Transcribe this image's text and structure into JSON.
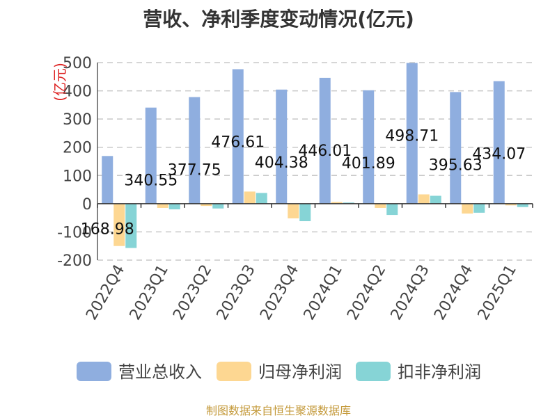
{
  "colors": {
    "revenue": "#8faedf",
    "net_profit": "#fdd792",
    "deducted_profit": "#86d4d6",
    "ylabel": "#dd2222",
    "source": "#c49a3b",
    "grid": "#c8c8c8",
    "axis": "#333333"
  },
  "source_note": "制图数据来自恒生聚源数据库",
  "chart_data": {
    "type": "bar",
    "title": "营收、净利季度变动情况(亿元)",
    "ylabel": "(亿元)",
    "xlabel": "",
    "ylim": [
      -200,
      500
    ],
    "yticks": [
      500,
      400,
      300,
      200,
      100,
      0,
      -100,
      -200
    ],
    "grid": true,
    "legend_position": "bottom",
    "categories": [
      "2022Q4",
      "2023Q1",
      "2023Q2",
      "2023Q3",
      "2023Q4",
      "2024Q1",
      "2024Q2",
      "2024Q3",
      "2024Q4",
      "2025Q1"
    ],
    "series": [
      {
        "name": "营业总收入",
        "color_key": "revenue",
        "values": [
          168.98,
          340.55,
          377.75,
          476.61,
          404.38,
          446.01,
          401.89,
          498.71,
          395.63,
          434.07
        ],
        "labels": [
          "168.98",
          "340.55",
          "377.75",
          "476.61",
          "404.38",
          "446.01",
          "401.89",
          "498.71",
          "395.63",
          "434.07"
        ]
      },
      {
        "name": "归母净利润",
        "color_key": "net_profit",
        "values": [
          -150,
          -15,
          -8,
          43,
          -52,
          6,
          -15,
          33,
          -35,
          -6
        ]
      },
      {
        "name": "扣非净利润",
        "color_key": "deducted_profit",
        "values": [
          -157,
          -20,
          -17,
          38,
          -62,
          4,
          -40,
          28,
          -32,
          -12
        ]
      }
    ]
  }
}
